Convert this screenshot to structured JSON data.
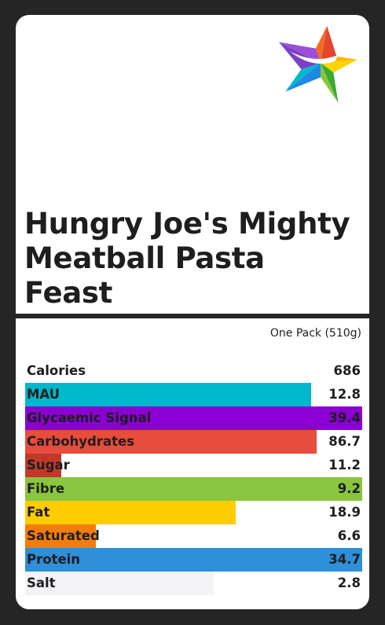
{
  "product": {
    "title": "Hungry Joe's Mighty Meatball Pasta Feast",
    "serving": "One Pack (510g)",
    "logo_icon": "rainbow-star-logo"
  },
  "nutrition": {
    "rows": [
      {
        "label": "Calories",
        "value": "686",
        "bar_fraction": 0,
        "color": "#ffffff"
      },
      {
        "label": "MAU",
        "value": "12.8",
        "bar_fraction": 0.848,
        "color": "#00b7cb"
      },
      {
        "label": "Glycaemic Signal",
        "value": "39.4",
        "bar_fraction": 1.0,
        "color": "#8b00d3"
      },
      {
        "label": "Carbohydrates",
        "value": "86.7",
        "bar_fraction": 0.865,
        "color": "#e74c3c"
      },
      {
        "label": "Sugar",
        "value": "11.2",
        "bar_fraction": 0.107,
        "color": "#c0392b"
      },
      {
        "label": "Fibre",
        "value": "9.2",
        "bar_fraction": 1.0,
        "color": "#8bc53f"
      },
      {
        "label": "Fat",
        "value": "18.9",
        "bar_fraction": 0.625,
        "color": "#ffcc00"
      },
      {
        "label": "Saturated",
        "value": "6.6",
        "bar_fraction": 0.21,
        "color": "#f47c0c"
      },
      {
        "label": "Protein",
        "value": "34.7",
        "bar_fraction": 1.0,
        "color": "#2f8fd8"
      },
      {
        "label": "Salt",
        "value": "2.8",
        "bar_fraction": 0.56,
        "color": "#f2f2f7"
      }
    ]
  }
}
